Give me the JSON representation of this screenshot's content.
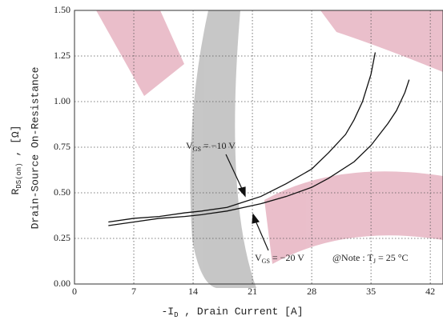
{
  "chart_data": {
    "type": "line",
    "x_label": {
      "pre": "-I",
      "sub": "D",
      "rest": " , Drain Current  [A]"
    },
    "y_label": {
      "main": "R",
      "sub": "DS(on)",
      "rest": " , [Ω]"
    },
    "y_label2": "Drain-Source On-Resistance",
    "xlim": [
      0,
      43.5
    ],
    "ylim": [
      0,
      1.5
    ],
    "xticks": [
      0,
      7,
      14,
      21,
      28,
      35,
      42
    ],
    "yticks": [
      {
        "value": 0,
        "label": "0.00"
      },
      {
        "value": 0.25,
        "label": "0.25"
      },
      {
        "value": 0.5,
        "label": "0.50"
      },
      {
        "value": 0.75,
        "label": "0.75"
      },
      {
        "value": 1,
        "label": "1.00"
      },
      {
        "value": 1.25,
        "label": "1.25"
      },
      {
        "value": 1.5,
        "label": "1.50"
      }
    ],
    "grid": true,
    "series": [
      {
        "name": {
          "main": "V",
          "sub": "GS",
          "rest": " = −10 V"
        },
        "color": "#111111",
        "x": [
          4,
          7,
          10,
          13,
          15,
          18,
          20,
          22,
          25,
          28,
          30,
          32,
          33,
          34,
          35,
          35.5
        ],
        "values": [
          0.34,
          0.36,
          0.37,
          0.39,
          0.4,
          0.42,
          0.45,
          0.48,
          0.55,
          0.63,
          0.72,
          0.82,
          0.9,
          1.0,
          1.15,
          1.27
        ]
      },
      {
        "name": {
          "main": "V",
          "sub": "GS",
          "rest": " = −20 V"
        },
        "color": "#111111",
        "x": [
          4,
          7,
          10,
          13,
          15,
          18,
          20,
          22,
          25,
          28,
          30,
          33,
          35,
          37,
          38,
          39,
          39.5
        ],
        "values": [
          0.32,
          0.34,
          0.36,
          0.37,
          0.38,
          0.4,
          0.42,
          0.44,
          0.48,
          0.53,
          0.58,
          0.67,
          0.76,
          0.88,
          0.95,
          1.05,
          1.12
        ]
      }
    ],
    "note": {
      "pre": "@Note : T",
      "sub": "J",
      "rest": " = 25 °C"
    }
  }
}
